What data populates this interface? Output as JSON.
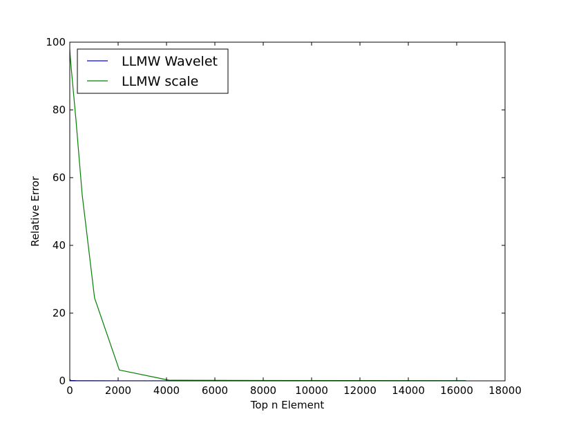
{
  "chart_data": {
    "type": "line",
    "title": "",
    "xlabel": "Top n Element",
    "ylabel": "Relative Error",
    "xlim": [
      0,
      18000
    ],
    "ylim": [
      0,
      100
    ],
    "xticks": [
      0,
      2000,
      4000,
      6000,
      8000,
      10000,
      12000,
      14000,
      16000,
      18000
    ],
    "yticks": [
      0,
      20,
      40,
      60,
      80,
      100
    ],
    "grid": false,
    "legend_position": "top-left",
    "series": [
      {
        "name": "LLMW Wavelet",
        "color": "#0000ff",
        "x": [
          0,
          16,
          64,
          256,
          1024,
          2048,
          4096,
          8192,
          16384
        ],
        "y": [
          0.5,
          0.2,
          0.1,
          0.05,
          0.02,
          0.01,
          0.01,
          0.01,
          0.01
        ]
      },
      {
        "name": "LLMW scale",
        "color": "#008000",
        "x": [
          0,
          16,
          64,
          256,
          512,
          1024,
          2048,
          4096,
          8192,
          16384
        ],
        "y": [
          98,
          96,
          92,
          77,
          55,
          24.5,
          3.2,
          0.2,
          0.1,
          0.05
        ]
      }
    ]
  }
}
